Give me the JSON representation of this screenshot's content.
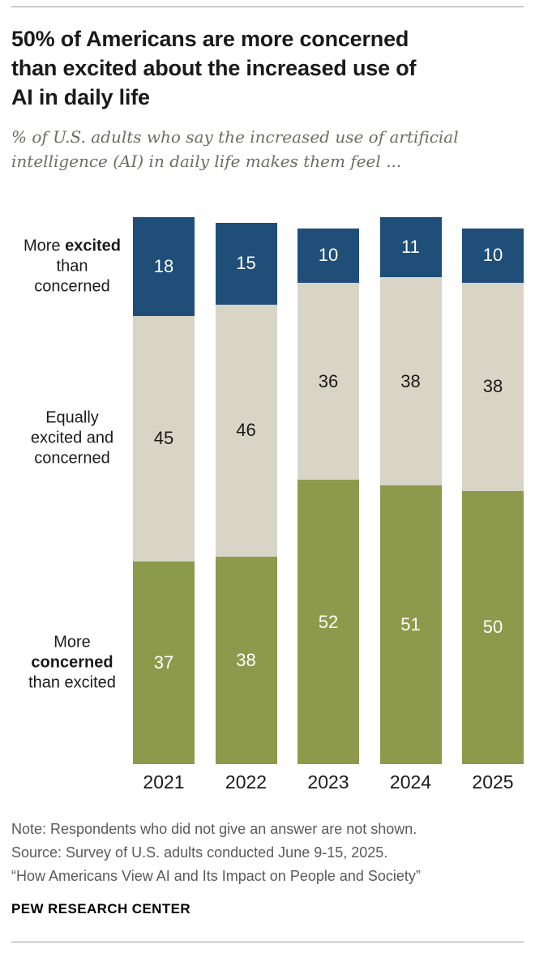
{
  "header": {
    "title": "50% of Americans are more concerned than excited about the increased use of AI in daily life",
    "title_lines": [
      "50% of Americans are more concerned",
      "than excited about the increased use of",
      "AI in daily life"
    ],
    "subtitle": "% of U.S. adults who say the increased use of artificial intelligence (AI) in daily life makes them feel ...",
    "subtitle_lines": [
      "% of U.S. adults who say the increased use of artificial",
      "intelligence (AI) in daily life makes them feel ..."
    ]
  },
  "chart_data": {
    "type": "bar",
    "stacked": true,
    "unit": "percent",
    "ylim": [
      0,
      100
    ],
    "grid": false,
    "legend_position": "left",
    "categories": [
      "2021",
      "2022",
      "2023",
      "2024",
      "2025"
    ],
    "series": [
      {
        "name": "More excited than concerned",
        "values": [
          18,
          15,
          10,
          11,
          10
        ],
        "color": "#1f4e79",
        "label_color": "#ffffff"
      },
      {
        "name": "Equally excited and concerned",
        "values": [
          45,
          46,
          36,
          38,
          38
        ],
        "color": "#d8d4c6",
        "label_color": "#1a1a1a"
      },
      {
        "name": "More concerned than excited",
        "values": [
          37,
          38,
          52,
          51,
          50
        ],
        "color": "#8d9a4b",
        "label_color": "#ffffff"
      }
    ],
    "side_labels": [
      {
        "top_pct": 9,
        "lines": [
          [
            {
              "text": "More ",
              "bold": false
            },
            {
              "text": "excited",
              "bold": true
            }
          ],
          [
            {
              "text": "than",
              "bold": false
            }
          ],
          [
            {
              "text": "concerned",
              "bold": false
            }
          ]
        ]
      },
      {
        "top_pct": 40.5,
        "lines": [
          [
            {
              "text": "Equally",
              "bold": false
            }
          ],
          [
            {
              "text": "excited and",
              "bold": false
            }
          ],
          [
            {
              "text": "concerned",
              "bold": false
            }
          ]
        ]
      },
      {
        "top_pct": 81.5,
        "lines": [
          [
            {
              "text": "More",
              "bold": false
            }
          ],
          [
            {
              "text": "concerned",
              "bold": true
            }
          ],
          [
            {
              "text": "than excited",
              "bold": false
            }
          ]
        ]
      }
    ]
  },
  "footer": {
    "note": "Note: Respondents who did not give an answer are not shown.",
    "source": "Source: Survey of U.S. adults conducted June 9-15, 2025.",
    "report": "“How Americans View AI and Its Impact on People and Society”",
    "brand": "PEW RESEARCH CENTER"
  }
}
